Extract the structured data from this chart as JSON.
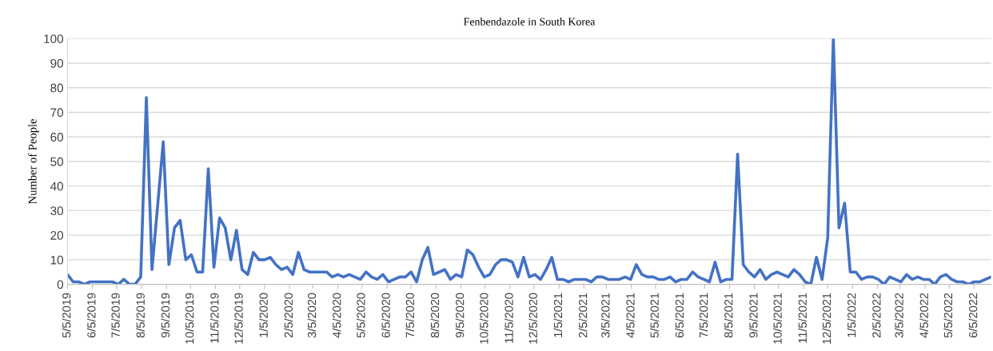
{
  "chart_data": {
    "type": "line",
    "title": "Fenbendazole in South Korea",
    "ylabel": "Number of People",
    "x": [
      "2019-05-05",
      "2019-05-12",
      "2019-05-19",
      "2019-05-26",
      "2019-06-02",
      "2019-06-09",
      "2019-06-16",
      "2019-06-23",
      "2019-06-30",
      "2019-07-07",
      "2019-07-14",
      "2019-07-21",
      "2019-07-28",
      "2019-08-04",
      "2019-08-11",
      "2019-08-18",
      "2019-08-25",
      "2019-09-01",
      "2019-09-08",
      "2019-09-15",
      "2019-09-22",
      "2019-09-29",
      "2019-10-06",
      "2019-10-13",
      "2019-10-20",
      "2019-10-27",
      "2019-11-03",
      "2019-11-10",
      "2019-11-17",
      "2019-11-24",
      "2019-12-01",
      "2019-12-08",
      "2019-12-15",
      "2019-12-22",
      "2019-12-29",
      "2020-01-05",
      "2020-01-12",
      "2020-01-19",
      "2020-01-26",
      "2020-02-02",
      "2020-02-09",
      "2020-02-16",
      "2020-02-23",
      "2020-03-01",
      "2020-03-08",
      "2020-03-15",
      "2020-03-22",
      "2020-03-29",
      "2020-04-05",
      "2020-04-12",
      "2020-04-19",
      "2020-04-26",
      "2020-05-03",
      "2020-05-10",
      "2020-05-17",
      "2020-05-24",
      "2020-05-31",
      "2020-06-07",
      "2020-06-14",
      "2020-06-21",
      "2020-06-28",
      "2020-07-05",
      "2020-07-12",
      "2020-07-19",
      "2020-07-26",
      "2020-08-02",
      "2020-08-09",
      "2020-08-16",
      "2020-08-23",
      "2020-08-30",
      "2020-09-06",
      "2020-09-13",
      "2020-09-20",
      "2020-09-27",
      "2020-10-04",
      "2020-10-11",
      "2020-10-18",
      "2020-10-25",
      "2020-11-01",
      "2020-11-08",
      "2020-11-15",
      "2020-11-22",
      "2020-11-29",
      "2020-12-06",
      "2020-12-13",
      "2020-12-20",
      "2020-12-27",
      "2021-01-03",
      "2021-01-10",
      "2021-01-17",
      "2021-01-24",
      "2021-01-31",
      "2021-02-07",
      "2021-02-14",
      "2021-02-21",
      "2021-02-28",
      "2021-03-07",
      "2021-03-14",
      "2021-03-21",
      "2021-03-28",
      "2021-04-04",
      "2021-04-11",
      "2021-04-18",
      "2021-04-25",
      "2021-05-02",
      "2021-05-09",
      "2021-05-16",
      "2021-05-23",
      "2021-05-30",
      "2021-06-06",
      "2021-06-13",
      "2021-06-20",
      "2021-06-27",
      "2021-07-04",
      "2021-07-11",
      "2021-07-18",
      "2021-07-25",
      "2021-08-01",
      "2021-08-08",
      "2021-08-15",
      "2021-08-22",
      "2021-08-29",
      "2021-09-05",
      "2021-09-12",
      "2021-09-19",
      "2021-09-26",
      "2021-10-03",
      "2021-10-10",
      "2021-10-17",
      "2021-10-24",
      "2021-10-31",
      "2021-11-07",
      "2021-11-14",
      "2021-11-21",
      "2021-11-28",
      "2021-12-05",
      "2021-12-12",
      "2021-12-19",
      "2021-12-26",
      "2022-01-02",
      "2022-01-09",
      "2022-01-16",
      "2022-01-23",
      "2022-01-30",
      "2022-02-06",
      "2022-02-13",
      "2022-02-20",
      "2022-02-27",
      "2022-03-06",
      "2022-03-13",
      "2022-03-20",
      "2022-03-27",
      "2022-04-03",
      "2022-04-10",
      "2022-04-17",
      "2022-04-24",
      "2022-05-01",
      "2022-05-08",
      "2022-05-15",
      "2022-05-22",
      "2022-05-29",
      "2022-06-05",
      "2022-06-12",
      "2022-06-19",
      "2022-06-26"
    ],
    "series": [
      {
        "color": "#4472c4",
        "values": [
          4,
          1,
          1,
          0,
          1,
          1,
          1,
          1,
          1,
          0,
          2,
          0,
          0,
          3,
          76,
          6,
          32,
          58,
          8,
          23,
          26,
          10,
          12,
          5,
          5,
          47,
          7,
          27,
          23,
          10,
          22,
          6,
          4,
          13,
          10,
          10,
          11,
          8,
          6,
          7,
          4,
          13,
          6,
          5,
          5,
          5,
          5,
          3,
          4,
          3,
          4,
          3,
          2,
          5,
          3,
          2,
          4,
          1,
          2,
          3,
          3,
          5,
          1,
          10,
          15,
          4,
          5,
          6,
          2,
          4,
          3,
          14,
          12,
          7,
          3,
          4,
          8,
          10,
          10,
          9,
          3,
          11,
          3,
          4,
          2,
          6,
          11,
          2,
          2,
          1,
          2,
          2,
          2,
          1,
          3,
          3,
          2,
          2,
          2,
          3,
          2,
          8,
          4,
          3,
          3,
          2,
          2,
          3,
          1,
          2,
          2,
          5,
          3,
          2,
          1,
          9,
          1,
          2,
          2,
          53,
          8,
          5,
          3,
          6,
          2,
          4,
          5,
          4,
          3,
          6,
          4,
          1,
          0,
          11,
          2,
          19,
          100,
          23,
          33,
          5,
          5,
          2,
          3,
          3,
          2,
          0,
          3,
          2,
          1,
          4,
          2,
          3,
          2,
          2,
          0,
          3,
          4,
          2,
          1,
          1,
          0,
          1,
          1,
          2,
          3
        ]
      }
    ],
    "xlim": [
      "2019-05-05",
      "2022-06-26"
    ],
    "xticks": [
      {
        "value": "2019-05-05",
        "label": "5/5/2019"
      },
      {
        "value": "2019-06-05",
        "label": "6/5/2019"
      },
      {
        "value": "2019-07-05",
        "label": "7/5/2019"
      },
      {
        "value": "2019-08-05",
        "label": "8/5/2019"
      },
      {
        "value": "2019-09-05",
        "label": "9/5/2019"
      },
      {
        "value": "2019-10-05",
        "label": "10/5/2019"
      },
      {
        "value": "2019-11-05",
        "label": "11/5/2019"
      },
      {
        "value": "2019-12-05",
        "label": "12/5/2019"
      },
      {
        "value": "2020-01-05",
        "label": "1/5/2020"
      },
      {
        "value": "2020-02-05",
        "label": "2/5/2020"
      },
      {
        "value": "2020-03-05",
        "label": "3/5/2020"
      },
      {
        "value": "2020-04-05",
        "label": "4/5/2020"
      },
      {
        "value": "2020-05-05",
        "label": "5/5/2020"
      },
      {
        "value": "2020-06-05",
        "label": "6/5/2020"
      },
      {
        "value": "2020-07-05",
        "label": "7/5/2020"
      },
      {
        "value": "2020-08-05",
        "label": "8/5/2020"
      },
      {
        "value": "2020-09-05",
        "label": "9/5/2020"
      },
      {
        "value": "2020-10-05",
        "label": "10/5/2020"
      },
      {
        "value": "2020-11-05",
        "label": "11/5/2020"
      },
      {
        "value": "2020-12-05",
        "label": "12/5/2020"
      },
      {
        "value": "2021-01-05",
        "label": "1/5/2021"
      },
      {
        "value": "2021-02-05",
        "label": "2/5/2021"
      },
      {
        "value": "2021-03-05",
        "label": "3/5/2021"
      },
      {
        "value": "2021-04-05",
        "label": "4/5/2021"
      },
      {
        "value": "2021-05-05",
        "label": "5/5/2021"
      },
      {
        "value": "2021-06-05",
        "label": "6/5/2021"
      },
      {
        "value": "2021-07-05",
        "label": "7/5/2021"
      },
      {
        "value": "2021-08-05",
        "label": "8/5/2021"
      },
      {
        "value": "2021-09-05",
        "label": "9/5/2021"
      },
      {
        "value": "2021-10-05",
        "label": "10/5/2021"
      },
      {
        "value": "2021-11-05",
        "label": "11/5/2021"
      },
      {
        "value": "2021-12-05",
        "label": "12/5/2021"
      },
      {
        "value": "2022-01-05",
        "label": "1/5/2022"
      },
      {
        "value": "2022-02-05",
        "label": "2/5/2022"
      },
      {
        "value": "2022-03-05",
        "label": "3/5/2022"
      },
      {
        "value": "2022-04-05",
        "label": "4/5/2022"
      },
      {
        "value": "2022-05-05",
        "label": "5/5/2022"
      },
      {
        "value": "2022-06-05",
        "label": "6/5/2022"
      }
    ],
    "ylim": [
      0,
      100
    ],
    "yticks": [
      0,
      10,
      20,
      30,
      40,
      50,
      60,
      70,
      80,
      90,
      100
    ],
    "grid": "y"
  }
}
